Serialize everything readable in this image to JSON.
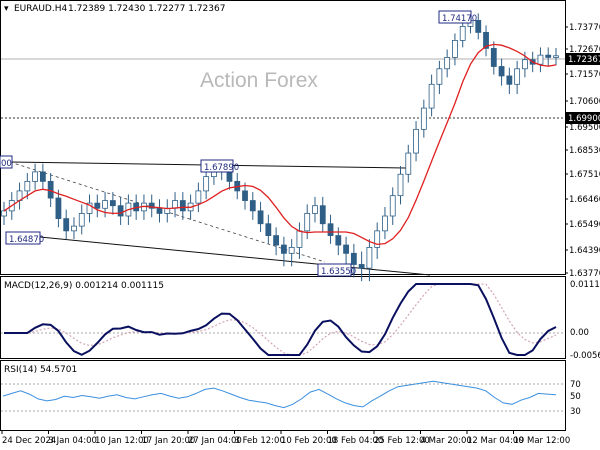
{
  "header": {
    "symbol": "EURAUD.H4",
    "ohlc": "1.72389 1.72430 1.72277 1.72367",
    "watermark": "Action Forex"
  },
  "price_axis": {
    "ticks": [
      "1.73770",
      "1.72670",
      "1.71570",
      "1.70600",
      "1.69500",
      "1.68530",
      "1.67510",
      "1.66460",
      "1.65490",
      "1.64390",
      "1.63770"
    ],
    "current_price": "1.72367",
    "level_price": "1.69900"
  },
  "annotations": {
    "high": "1.74170",
    "mid_high": "1.67890",
    "left_high": "00",
    "left_low": "1.64870",
    "low": "1.63550"
  },
  "macd": {
    "label": "MACD(12,26,9) 0.001214 0.001115",
    "ticks": [
      "0.011146",
      "0.00",
      "-0.005639"
    ]
  },
  "rsi": {
    "label": "RSI(14) 54.5701",
    "ticks": [
      "70",
      "50",
      "30"
    ]
  },
  "time_axis": [
    "24 Dec 2024",
    "3 Jan 04:00",
    "10 Jan 12:00",
    "17 Jan 20:00",
    "27 Jan 04:00",
    "3 Feb 12:00",
    "10 Feb 20:00",
    "18 Feb 04:00",
    "25 Feb 12:00",
    "4 Mar 20:00",
    "12 Mar 04:00",
    "19 Mar 12:00"
  ],
  "colors": {
    "candle": "#2f5f86",
    "ma": "#e02020",
    "macd": "#0a1060",
    "signal": "#d3a3b5",
    "rsi": "#3b8fe0",
    "price_label_bg": "#000000"
  },
  "chart_data": {
    "type": "candlestick",
    "series": [
      {
        "name": "price",
        "values": [
          1.66,
          1.664,
          1.668,
          1.672,
          1.676,
          1.672,
          1.665,
          1.657,
          1.652,
          1.654,
          1.659,
          1.663,
          1.661,
          1.664,
          1.662,
          1.658,
          1.663,
          1.66,
          1.663,
          1.661,
          1.659,
          1.661,
          1.664,
          1.66,
          1.663,
          1.668,
          1.674,
          1.677,
          1.676,
          1.672,
          1.668,
          1.664,
          1.66,
          1.655,
          1.65,
          1.646,
          1.643,
          1.645,
          1.652,
          1.659,
          1.662,
          1.655,
          1.65,
          1.646,
          1.643,
          1.64,
          1.639,
          1.645,
          1.652,
          1.658,
          1.666,
          1.675,
          1.684,
          1.694,
          1.703,
          1.712,
          1.718,
          1.723,
          1.731,
          1.738,
          1.741,
          1.735,
          1.727,
          1.719,
          1.715,
          1.712,
          1.718,
          1.722,
          1.72,
          1.724,
          1.723,
          1.7237
        ]
      },
      {
        "name": "rsi",
        "values": [
          52,
          56,
          60,
          55,
          48,
          45,
          47,
          52,
          50,
          53,
          51,
          49,
          52,
          54,
          50,
          48,
          51,
          54,
          56,
          52,
          49,
          51,
          56,
          62,
          64,
          60,
          55,
          50,
          46,
          44,
          42,
          38,
          35,
          40,
          48,
          58,
          62,
          55,
          48,
          42,
          38,
          36,
          45,
          52,
          60,
          66,
          68,
          70,
          72,
          74,
          72,
          70,
          68,
          66,
          64,
          60,
          50,
          42,
          40,
          46,
          50,
          56,
          55,
          54
        ]
      }
    ]
  }
}
